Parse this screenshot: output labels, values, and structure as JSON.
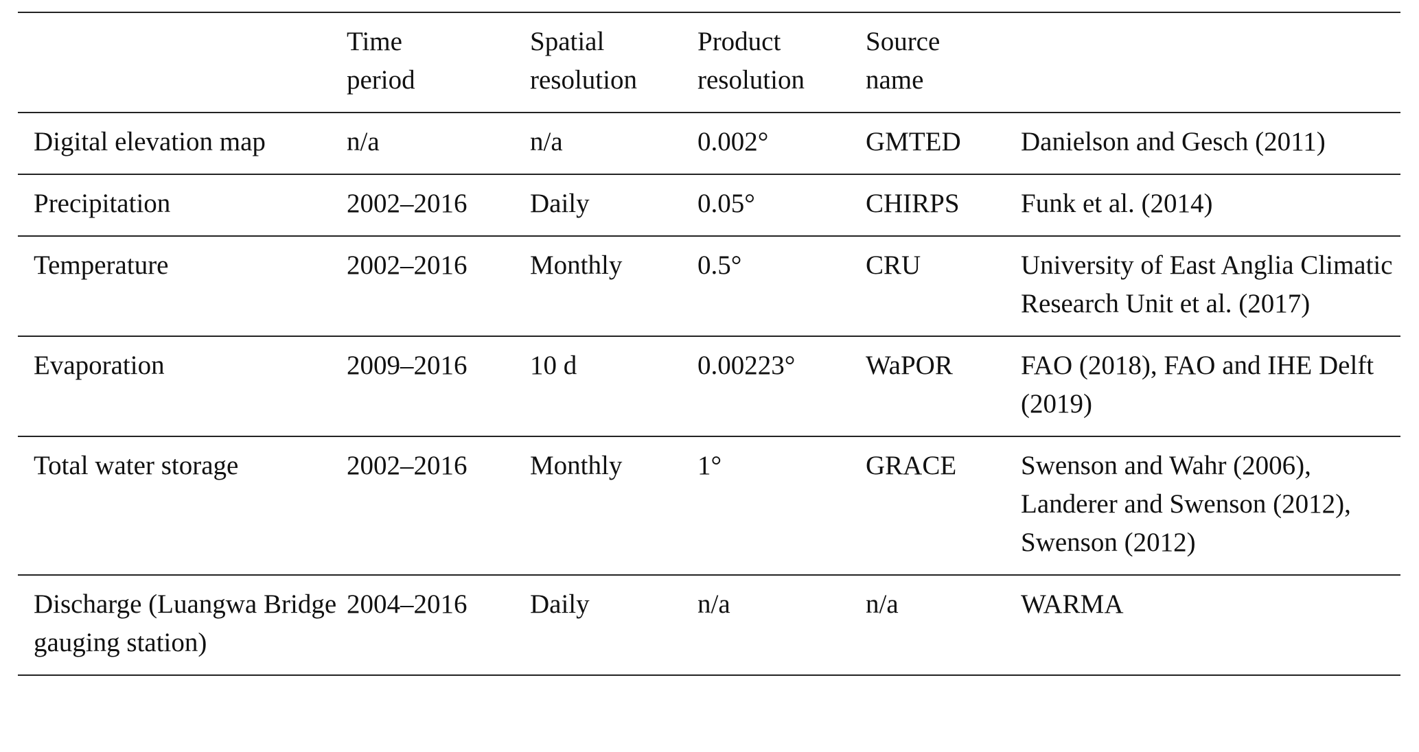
{
  "headers": [
    "",
    "Time period",
    "Spatial resolution",
    "Product resolution",
    "Source name",
    ""
  ],
  "header_lines": [
    [
      "",
      ""
    ],
    [
      "Time",
      "period"
    ],
    [
      "Spatial",
      "resolution"
    ],
    [
      "Product",
      "resolution"
    ],
    [
      "Source",
      "name"
    ],
    [
      "",
      ""
    ]
  ],
  "rows": [
    [
      "Digital elevation map",
      "n/a",
      "n/a",
      "0.002°",
      "GMTED",
      "Danielson and Gesch (2011)"
    ],
    [
      "Precipitation",
      "2002–2016",
      "Daily",
      "0.05°",
      "CHIRPS",
      "Funk et al. (2014)"
    ],
    [
      "Temperature",
      "2002–2016",
      "Monthly",
      "0.5°",
      "CRU",
      "University of East Anglia Climatic Research Unit et al. (2017)"
    ],
    [
      "Evaporation",
      "2009–2016",
      "10 d",
      "0.00223°",
      "WaPOR",
      "FAO (2018), FAO and IHE Delft (2019)"
    ],
    [
      "Total water storage",
      "2002–2016",
      "Monthly",
      "1°",
      "GRACE",
      "Swenson and Wahr (2006), Landerer and Swenson (2012), Swenson (2012)"
    ],
    [
      "Discharge (Luangwa Bridge gauging station)",
      "2004–2016",
      "Daily",
      "n/a",
      "n/a",
      "WARMA"
    ]
  ]
}
